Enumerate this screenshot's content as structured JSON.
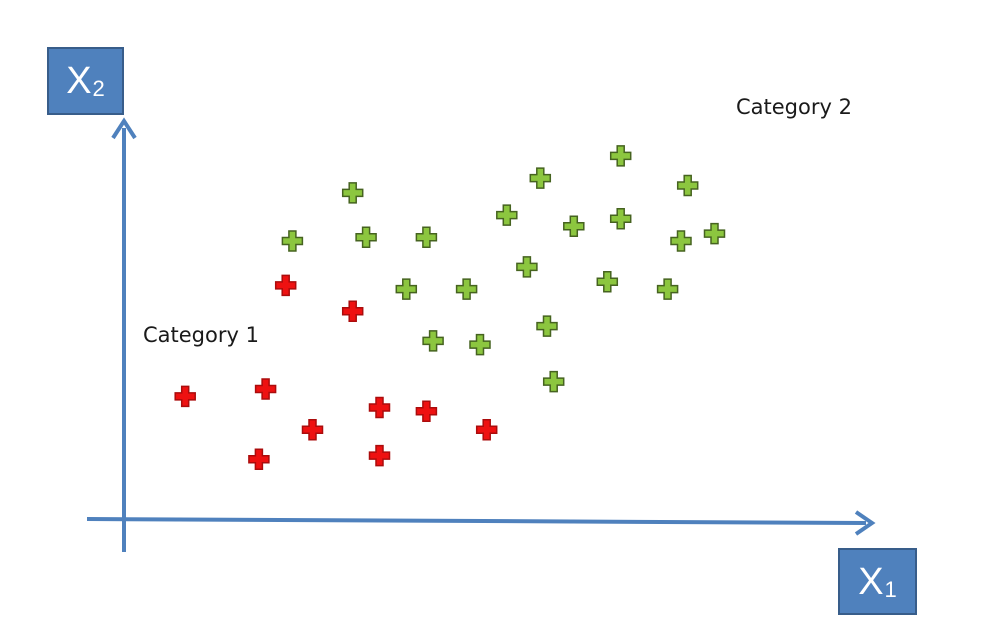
{
  "chart_data": {
    "type": "scatter",
    "xlabel": "X",
    "xlabel_subscript": "1",
    "ylabel": "X",
    "ylabel_subscript": "2",
    "grid": false,
    "marker": "plus",
    "xlim": [
      0,
      100
    ],
    "ylim": [
      0,
      100
    ],
    "series": [
      {
        "name": "Category 1",
        "color": "#ee1111",
        "points": [
          {
            "x": 21,
            "y": 58
          },
          {
            "x": 31,
            "y": 51
          },
          {
            "x": 6,
            "y": 28
          },
          {
            "x": 18,
            "y": 30
          },
          {
            "x": 25,
            "y": 19
          },
          {
            "x": 17,
            "y": 11
          },
          {
            "x": 35,
            "y": 25
          },
          {
            "x": 35,
            "y": 12
          },
          {
            "x": 42,
            "y": 24
          },
          {
            "x": 51,
            "y": 19
          }
        ]
      },
      {
        "name": "Category 2",
        "color": "#8cc63f",
        "points": [
          {
            "x": 22,
            "y": 70
          },
          {
            "x": 31,
            "y": 83
          },
          {
            "x": 33,
            "y": 71
          },
          {
            "x": 42,
            "y": 71
          },
          {
            "x": 39,
            "y": 57
          },
          {
            "x": 43,
            "y": 43
          },
          {
            "x": 48,
            "y": 57
          },
          {
            "x": 50,
            "y": 42
          },
          {
            "x": 54,
            "y": 77
          },
          {
            "x": 57,
            "y": 63
          },
          {
            "x": 59,
            "y": 87
          },
          {
            "x": 60,
            "y": 47
          },
          {
            "x": 61,
            "y": 32
          },
          {
            "x": 64,
            "y": 74
          },
          {
            "x": 69,
            "y": 59
          },
          {
            "x": 71,
            "y": 93
          },
          {
            "x": 71,
            "y": 76
          },
          {
            "x": 78,
            "y": 57
          },
          {
            "x": 80,
            "y": 70
          },
          {
            "x": 81,
            "y": 85
          },
          {
            "x": 85,
            "y": 72
          }
        ]
      }
    ]
  }
}
